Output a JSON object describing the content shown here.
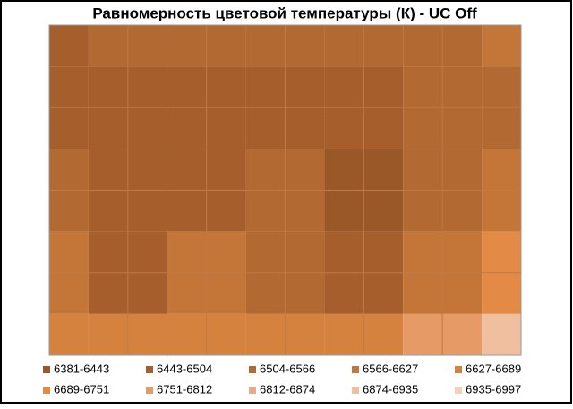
{
  "chart_data": {
    "type": "contour",
    "title": "Равномерность  цветовой температуры (К) - UC Off",
    "levels": [
      6381,
      6443,
      6504,
      6566,
      6627,
      6689,
      6751,
      6812,
      6874,
      6935,
      6997
    ],
    "series": [
      {
        "name": "6381-6443",
        "color": "#9a5828"
      },
      {
        "name": "6443-6504",
        "color": "#a65f2c"
      },
      {
        "name": "6504-6566",
        "color": "#b26932"
      },
      {
        "name": "6566-6627",
        "color": "#c47638"
      },
      {
        "name": "6627-6689",
        "color": "#d5823f"
      },
      {
        "name": "6689-6751",
        "color": "#e38a47"
      },
      {
        "name": "6751-6812",
        "color": "#e69a66"
      },
      {
        "name": "6812-6874",
        "color": "#e9ab88"
      },
      {
        "name": "6874-6935",
        "color": "#f0bf9f"
      },
      {
        "name": "6935-6997",
        "color": "#f5d1ba"
      }
    ],
    "z": [
      [
        6470,
        6530,
        6540,
        6530,
        6550,
        6560,
        6580
      ],
      [
        6470,
        6480,
        6500,
        6480,
        6490,
        6530,
        6560
      ],
      [
        6520,
        6470,
        6500,
        6530,
        6430,
        6530,
        6600
      ],
      [
        6580,
        6470,
        6580,
        6560,
        6480,
        6600,
        6700
      ],
      [
        6660,
        6680,
        6640,
        6650,
        6640,
        6760,
        6900
      ]
    ]
  }
}
